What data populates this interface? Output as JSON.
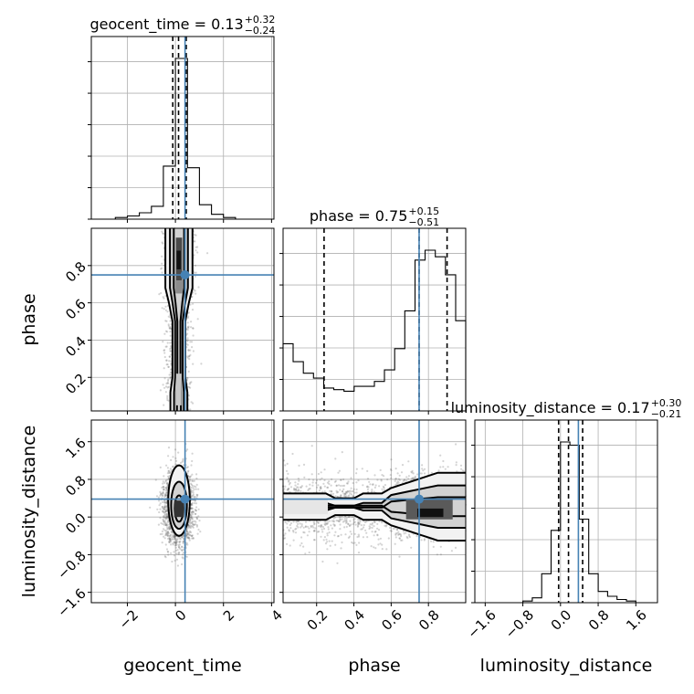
{
  "chart_data": {
    "type": "corner",
    "parameters": [
      "geocent_time",
      "phase",
      "luminosity_distance"
    ],
    "axis_labels": {
      "x": [
        "geocent_time",
        "phase",
        "luminosity_distance"
      ],
      "y": [
        "phase",
        "luminosity_distance"
      ]
    },
    "ranges": {
      "geocent_time": [
        -3.5,
        4.1
      ],
      "phase": [
        0.02,
        1.0
      ],
      "luminosity_distance": [
        -1.82,
        2.06
      ]
    },
    "ticks": {
      "geocent_time": [
        -2,
        0,
        2,
        4
      ],
      "phase": [
        0.2,
        0.4,
        0.6,
        0.8
      ],
      "luminosity_distance": [
        -1.6,
        -0.8,
        0.0,
        0.8,
        1.6
      ]
    },
    "tick_labels": {
      "geocent_time": [
        "−2",
        "0",
        "2",
        "4"
      ],
      "phase": [
        "0.2",
        "0.4",
        "0.6",
        "0.8"
      ],
      "luminosity_distance": [
        "−1.6",
        "−0.8",
        "0.0",
        "0.8",
        "1.6"
      ]
    },
    "titles": [
      {
        "param": "geocent_time",
        "name": "geocent_time = 0.13",
        "upper": "+0.32",
        "lower": "−0.24"
      },
      {
        "param": "phase",
        "name": "phase = 0.75",
        "upper": "+0.15",
        "lower": "−0.51"
      },
      {
        "param": "luminosity_distance",
        "name": "luminosity_distance = 0.17",
        "upper": "+0.30",
        "lower": "−0.21"
      }
    ],
    "truths": {
      "geocent_time": 0.4,
      "phase": 0.75,
      "luminosity_distance": 0.38
    },
    "quantile_lines": {
      "geocent_time": [
        -0.11,
        0.13,
        0.45
      ],
      "phase": [
        0.24,
        0.75,
        0.9
      ],
      "luminosity_distance": [
        -0.04,
        0.17,
        0.47
      ]
    },
    "histograms": {
      "geocent_time": {
        "edges": [
          -3.5,
          -3.0,
          -2.5,
          -2.0,
          -1.5,
          -1.0,
          -0.5,
          0.0,
          0.5,
          1.0,
          1.5,
          2.0,
          2.5,
          3.0,
          3.5,
          4.1
        ],
        "counts": [
          0,
          0,
          0.01,
          0.02,
          0.04,
          0.08,
          0.33,
          1.0,
          0.32,
          0.09,
          0.03,
          0.01,
          0,
          0,
          0
        ]
      },
      "phase": {
        "edges": [
          0.02,
          0.074,
          0.129,
          0.183,
          0.238,
          0.292,
          0.347,
          0.401,
          0.456,
          0.51,
          0.564,
          0.619,
          0.673,
          0.728,
          0.782,
          0.837,
          0.891,
          0.946,
          1.0
        ],
        "counts": [
          0.41,
          0.3,
          0.23,
          0.2,
          0.14,
          0.13,
          0.12,
          0.15,
          0.15,
          0.18,
          0.25,
          0.38,
          0.61,
          0.92,
          0.98,
          0.94,
          0.83,
          0.55
        ]
      },
      "luminosity_distance": {
        "edges": [
          -1.82,
          -1.6,
          -1.4,
          -1.2,
          -1.0,
          -0.8,
          -0.6,
          -0.4,
          -0.2,
          0.0,
          0.2,
          0.4,
          0.6,
          0.8,
          1.0,
          1.2,
          1.4,
          1.6,
          1.8,
          2.06
        ],
        "counts": [
          0,
          0,
          0,
          0,
          0,
          0.01,
          0.03,
          0.18,
          0.45,
          1.0,
          0.98,
          0.52,
          0.18,
          0.07,
          0.04,
          0.02,
          0.01,
          0,
          0
        ]
      }
    }
  }
}
